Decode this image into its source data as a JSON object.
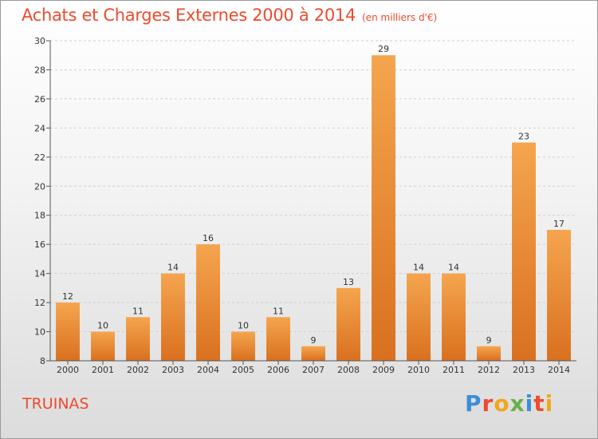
{
  "header": {
    "title": "Achats et Charges Externes 2000 à 2014",
    "subtitle": "(en milliers d'€)"
  },
  "footer": {
    "commune": "TRUINAS",
    "logo_text": "Proxiti"
  },
  "colors": {
    "title": "#ee4a2e",
    "bar_top": "#f5a54e",
    "bar_bottom": "#d9701f",
    "axis": "#555555",
    "grid": "#d0d0d0"
  },
  "chart_data": {
    "type": "bar",
    "title": "Achats et Charges Externes 2000 à 2014",
    "subtitle": "(en milliers d'€)",
    "xlabel": "",
    "ylabel": "",
    "categories": [
      "2000",
      "2001",
      "2002",
      "2003",
      "2004",
      "2005",
      "2006",
      "2007",
      "2008",
      "2009",
      "2010",
      "2011",
      "2012",
      "2013",
      "2014"
    ],
    "values": [
      12,
      10,
      11,
      14,
      16,
      10,
      11,
      9,
      13,
      29,
      14,
      14,
      9,
      23,
      17
    ],
    "ylim": [
      8,
      30
    ],
    "yticks": [
      8,
      10,
      12,
      14,
      16,
      18,
      20,
      22,
      24,
      26,
      28,
      30
    ],
    "grid": "horizontal dashed",
    "legend": "none"
  }
}
